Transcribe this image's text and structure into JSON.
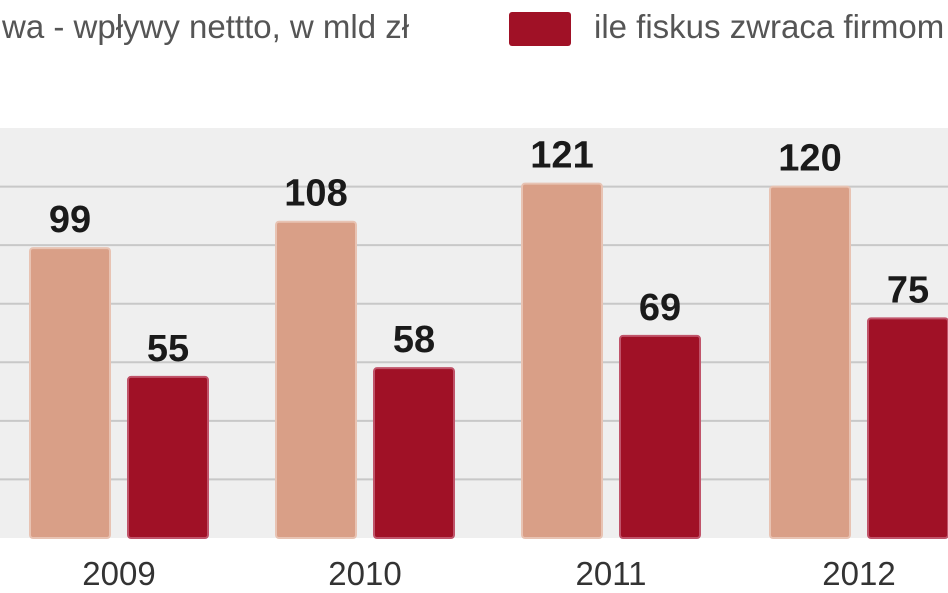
{
  "chart_data": {
    "type": "bar",
    "categories": [
      "2009",
      "2010",
      "2011",
      "2012"
    ],
    "series": [
      {
        "name": "wa - wpływy nettto, w mld zł",
        "values": [
          99,
          108,
          121,
          120
        ],
        "color": "#d99f87"
      },
      {
        "name": "ile fiskus zwraca firmom",
        "values": [
          55,
          58,
          69,
          75
        ],
        "color": "#a01126"
      }
    ],
    "data_labels": {
      "series_0": [
        "99",
        "108",
        "121",
        "120"
      ],
      "series_1": [
        "55",
        "58",
        "69",
        "75"
      ]
    },
    "ylim": [
      0,
      140
    ],
    "grid": true,
    "legend_position": "top",
    "background_color": "#efefef",
    "gridline_color": "#c8c8c8"
  }
}
